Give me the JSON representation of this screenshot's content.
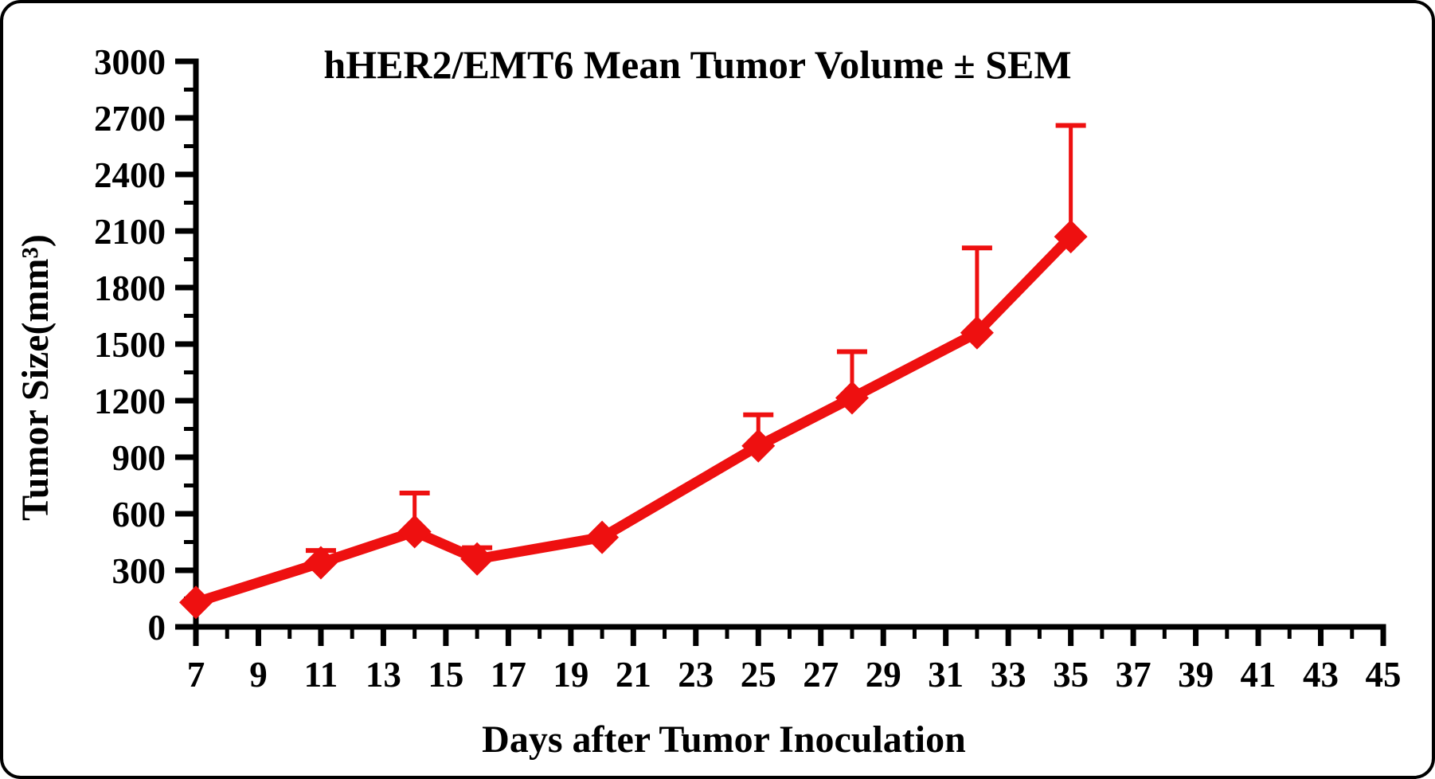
{
  "chart_data": {
    "type": "line",
    "title": "hHER2/EMT6 Mean Tumor Volume ± SEM",
    "xlabel": "Days after Tumor Inoculation",
    "ylabel": "Tumor Size(mm³)",
    "series": [
      {
        "name": "hHER2/EMT6 mean tumor volume",
        "x": [
          7,
          11,
          14,
          16,
          20,
          25,
          28,
          32,
          35
        ],
        "mean": [
          130,
          340,
          505,
          360,
          475,
          960,
          1215,
          1560,
          2070
        ],
        "sem": [
          0,
          65,
          205,
          60,
          0,
          165,
          245,
          450,
          590
        ]
      }
    ],
    "error_bar_direction": "up",
    "marker": "diamond",
    "xlim": [
      7,
      45
    ],
    "ylim": [
      0,
      3000
    ],
    "x_major_ticks": [
      7,
      9,
      11,
      13,
      15,
      17,
      19,
      21,
      23,
      25,
      27,
      29,
      31,
      33,
      35,
      37,
      39,
      41,
      43,
      45
    ],
    "x_minor_ticks": [
      8,
      10,
      12,
      14,
      16,
      18,
      20,
      22,
      24,
      26,
      28,
      30,
      32,
      34,
      36,
      38,
      40,
      42,
      44
    ],
    "y_major_ticks": [
      0,
      300,
      600,
      900,
      1200,
      1500,
      1800,
      2100,
      2400,
      2700,
      3000
    ],
    "y_minor_ticks": [
      150,
      450,
      750,
      1050,
      1350,
      1650,
      1950,
      2250,
      2550,
      2850
    ],
    "grid": false,
    "legend": "none",
    "line_color": "#ee1010",
    "axis_color": "#000000",
    "background_color": "#ffffff"
  }
}
